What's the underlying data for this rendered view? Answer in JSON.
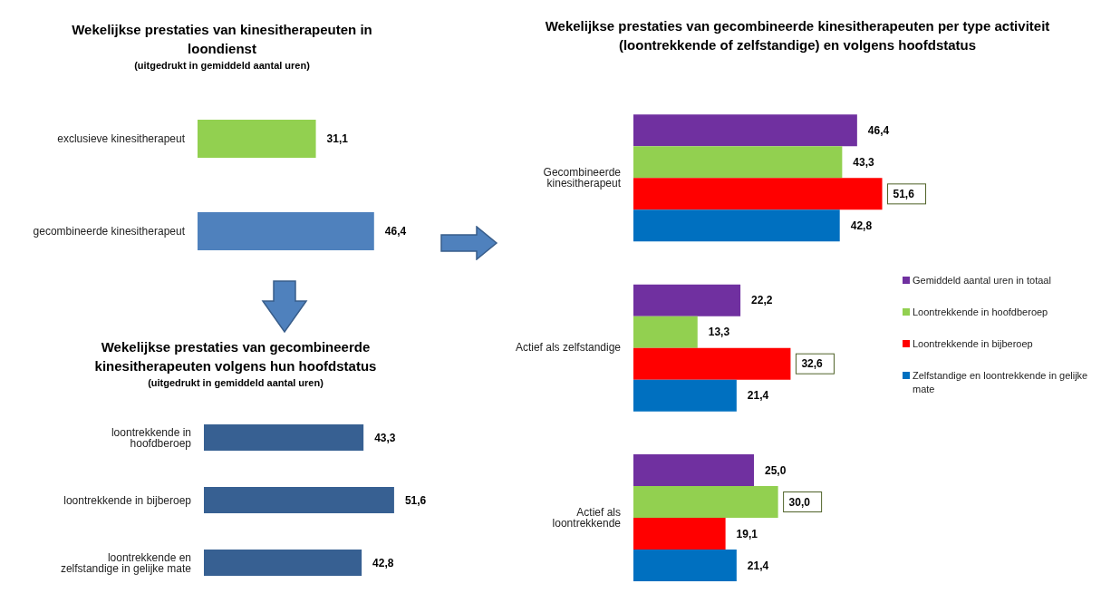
{
  "chart_data": [
    {
      "type": "bar",
      "orientation": "horizontal",
      "title": "Wekelijkse prestaties van kinesitherapeuten in loondienst",
      "subtitle": "(uitgedrukt in gemiddeld aantal uren)",
      "categories": [
        "exclusieve kinesitherapeut",
        "gecombineerde kinesitherapeut"
      ],
      "values": [
        31.1,
        46.4
      ],
      "colors": [
        "#92d050",
        "#4f81bd"
      ],
      "value_labels": [
        "31,1",
        "46,4"
      ]
    },
    {
      "type": "bar",
      "orientation": "horizontal",
      "title": "Wekelijkse prestaties van gecombineerde kinesitherapeuten volgens hun hoofdstatus",
      "subtitle": "(uitgedrukt in gemiddeld aantal uren)",
      "categories": [
        "loontrekkende in hoofdberoep",
        "loontrekkende in bijberoep",
        "loontrekkende en zelfstandige  in gelijke mate"
      ],
      "values": [
        43.3,
        51.6,
        42.8
      ],
      "color": "#376092",
      "value_labels": [
        "43,3",
        "51,6",
        "42,8"
      ]
    },
    {
      "type": "bar",
      "orientation": "horizontal",
      "title": "Wekelijkse prestaties van gecombineerde kinesitherapeuten per type activiteit (loontrekkende of zelfstandige) en volgens hoofdstatus",
      "categories": [
        "Gecombineerde kinesitherapeut",
        "Actief als zelfstandige",
        "Actief als loontrekkende"
      ],
      "legend": "right",
      "series": [
        {
          "name": "Gemiddeld aantal uren in totaal",
          "color": "#7030a0",
          "values": [
            46.4,
            22.2,
            25.0
          ],
          "value_labels": [
            "46,4",
            "22,2",
            "25,0"
          ]
        },
        {
          "name": "Loontrekkende in hoofdberoep",
          "color": "#92d050",
          "values": [
            43.3,
            13.3,
            30.0
          ],
          "value_labels": [
            "43,3",
            "13,3",
            "30,0"
          ]
        },
        {
          "name": "Loontrekkende in bijberoep",
          "color": "#ff0000",
          "values": [
            51.6,
            32.6,
            19.1
          ],
          "value_labels": [
            "51,6",
            "32,6",
            "19,1"
          ]
        },
        {
          "name": "Zelfstandige en loontrekkende in gelijke mate",
          "color": "#0070c0",
          "values": [
            42.8,
            21.4,
            21.4
          ],
          "value_labels": [
            "42,8",
            "21,4",
            "21,4"
          ]
        }
      ]
    }
  ]
}
